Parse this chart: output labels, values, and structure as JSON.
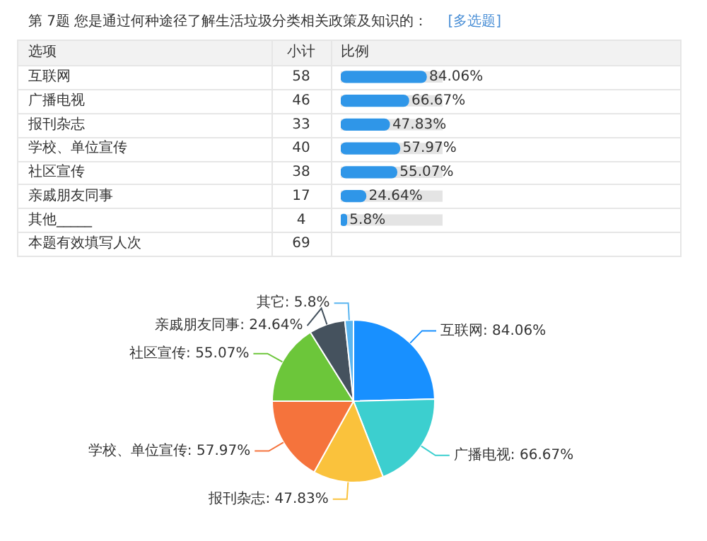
{
  "chart_data": [
    {
      "type": "bar",
      "orientation": "horizontal",
      "title": "第 7题  您是通过何种途径了解生活垃圾分类相关政策及知识的：",
      "subtitle": "[多选题]",
      "ylabel": "选项",
      "xlabel": "比例",
      "categories": [
        "互联网",
        "广播电视",
        "报刊杂志",
        "学校、单位宣传",
        "社区宣传",
        "亲戚朋友同事",
        "其他_____",
        "本题有效填写人次"
      ],
      "values": [
        84.06,
        66.67,
        47.83,
        57.97,
        55.07,
        24.64,
        5.8,
        null
      ],
      "color": "#2f96e8",
      "value_labels": [
        "84.06%",
        "66.67%",
        "47.83%",
        "57.97%",
        "55.07%",
        "24.64%",
        "5.8%",
        null
      ],
      "xlim": [
        0,
        100
      ],
      "tick_labels": "y",
      "annotations": [
        "小计",
        "58",
        "46",
        "33",
        "40",
        "38",
        "17",
        "4",
        "69"
      ]
    },
    {
      "type": "pie",
      "categories": [
        "互联网",
        "广播电视",
        "报刊杂志",
        "学校、单位宣传",
        "社区宣传",
        "亲戚朋友同事",
        "其它"
      ],
      "values": [
        84.06,
        66.67,
        47.83,
        57.97,
        55.07,
        24.64,
        5.8
      ],
      "value_labels": [
        "84.06%",
        "66.67%",
        "47.83%",
        "57.97%",
        "55.07%",
        "24.64%",
        "5.8%"
      ],
      "colors": [
        "#1890ff",
        "#3ccfcf",
        "#fac23c",
        "#f5733c",
        "#6cc63a",
        "#45525e",
        "#5ab5f0"
      ]
    }
  ]
}
